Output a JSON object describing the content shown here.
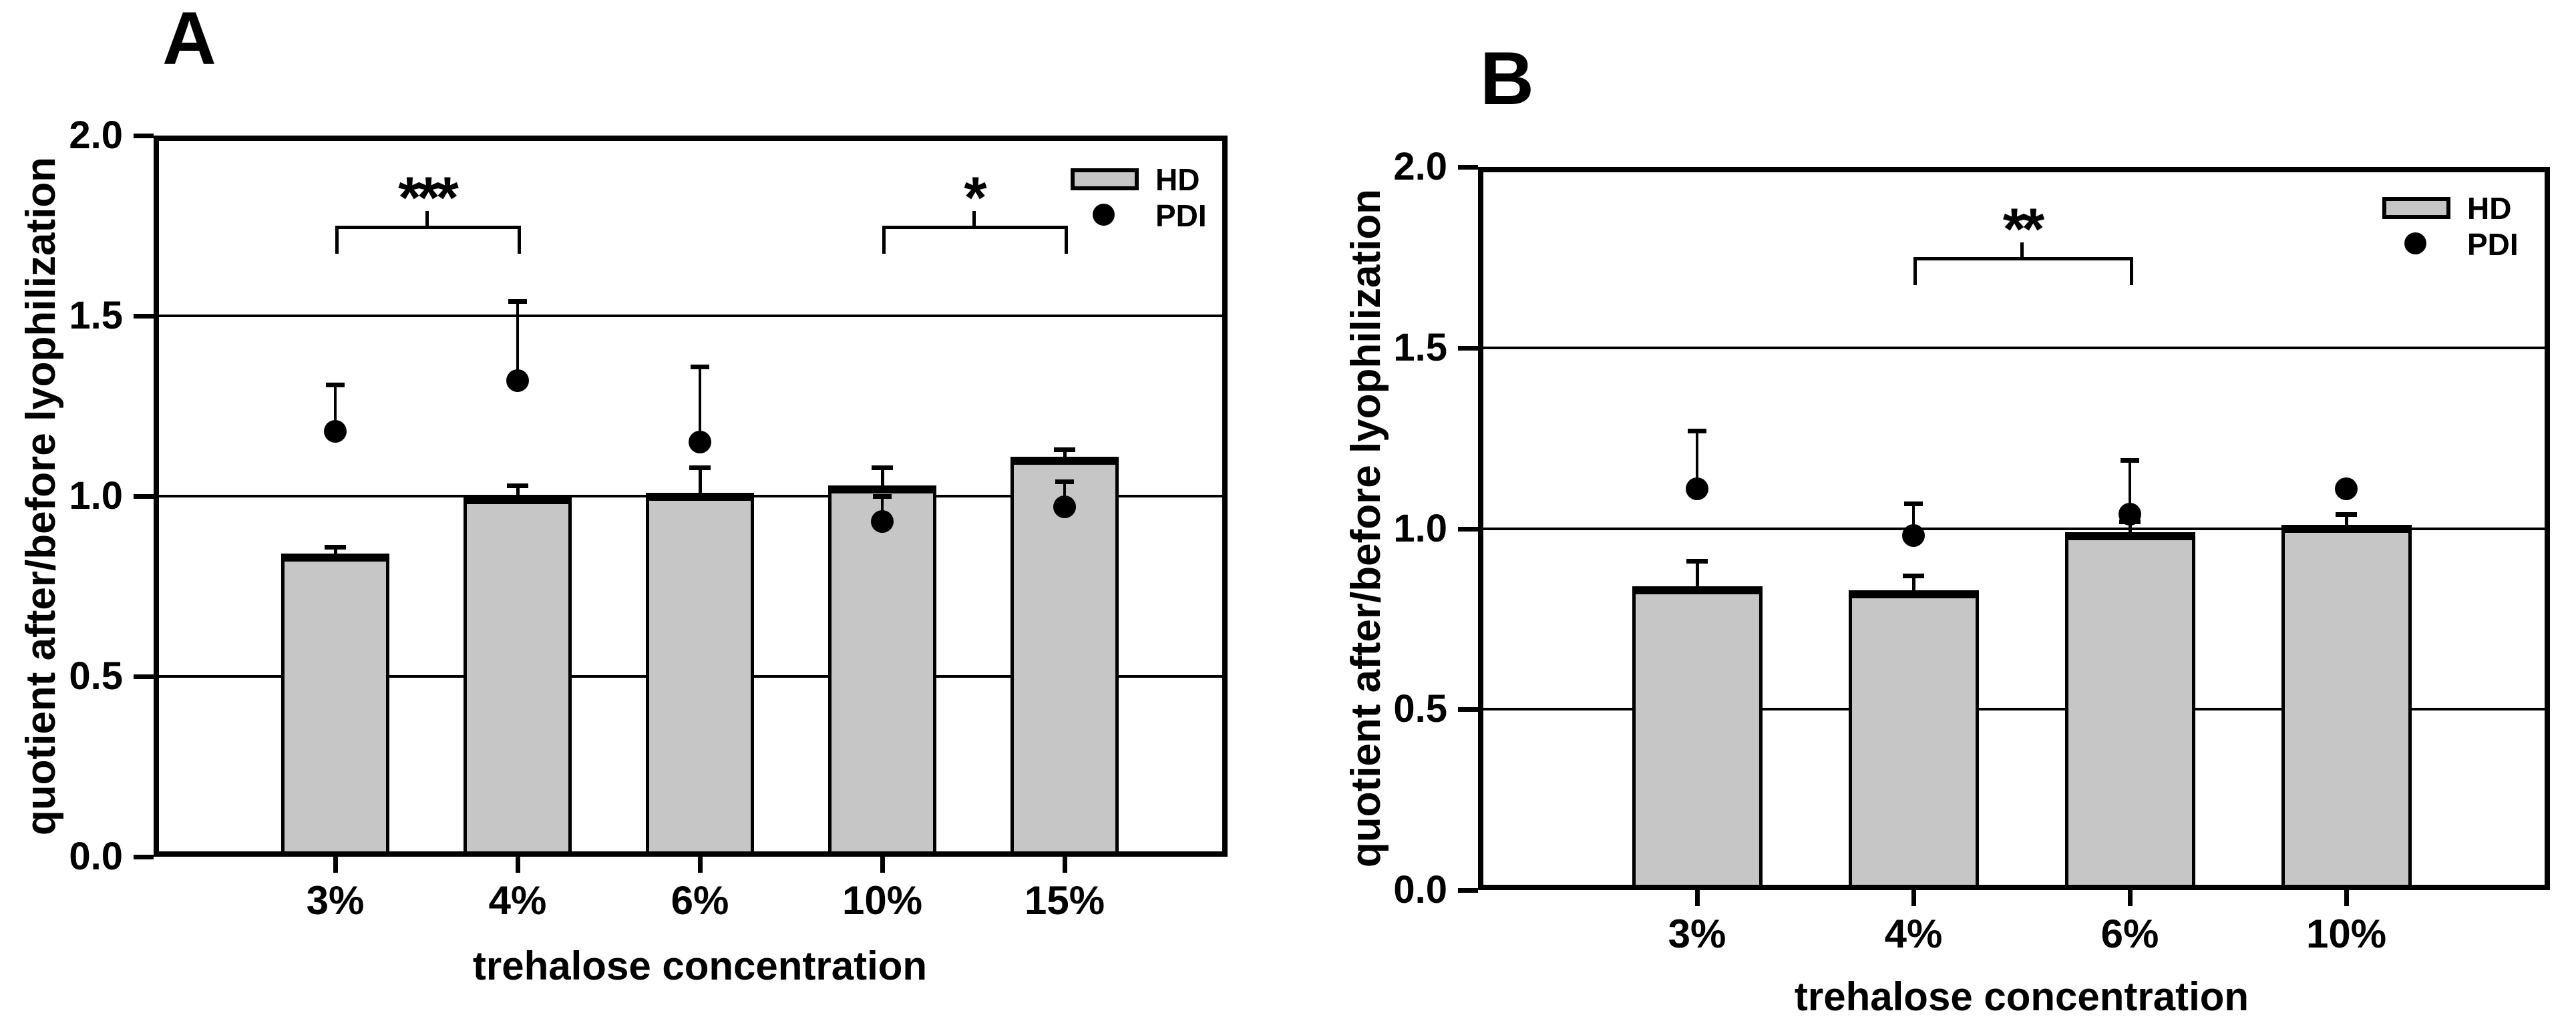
{
  "figure": {
    "background_color": "#ffffff",
    "foreground_color": "#000000",
    "bar_fill_color": "#c6c6c6"
  },
  "chart_data": [
    {
      "type": "bar",
      "panel_label": "A",
      "xlabel": "trehalose concentration",
      "ylabel": "quotient after/before lyophilization",
      "ylim": [
        0.0,
        2.0
      ],
      "ytick_labels": [
        "0.0",
        "0.5",
        "1.0",
        "1.5",
        "2.0"
      ],
      "ytick_values": [
        0.0,
        0.5,
        1.0,
        1.5,
        2.0
      ],
      "grid": true,
      "legend_position": "top-right",
      "categories": [
        "3%",
        "4%",
        "6%",
        "10%",
        "15%"
      ],
      "series": [
        {
          "name": "HD",
          "marker": "bar",
          "values": [
            0.84,
            1.0,
            1.01,
            1.03,
            1.11
          ],
          "errors_plus": [
            0.02,
            0.03,
            0.07,
            0.05,
            0.02
          ]
        },
        {
          "name": "PDI",
          "marker": "dot",
          "values": [
            1.18,
            1.32,
            1.15,
            0.93,
            0.97
          ],
          "errors_plus": [
            0.13,
            0.22,
            0.21,
            0.07,
            0.07
          ]
        }
      ],
      "annotations": [
        {
          "label": "***",
          "from": "3%",
          "to": "4%",
          "bracket_y": 1.75
        },
        {
          "label": "*",
          "from": "10%",
          "to": "15%",
          "bracket_y": 1.75
        }
      ],
      "legend": [
        {
          "label": "HD",
          "marker": "bar"
        },
        {
          "label": "PDI",
          "marker": "dot"
        }
      ]
    },
    {
      "type": "bar",
      "panel_label": "B",
      "xlabel": "trehalose concentration",
      "ylabel": "quotient after/before lyophilization",
      "ylim": [
        0.0,
        2.0
      ],
      "ytick_labels": [
        "0.0",
        "0.5",
        "1.0",
        "1.5",
        "2.0"
      ],
      "ytick_values": [
        0.0,
        0.5,
        1.0,
        1.5,
        2.0
      ],
      "grid": true,
      "legend_position": "top-right",
      "categories": [
        "3%",
        "4%",
        "6%",
        "10%"
      ],
      "series": [
        {
          "name": "HD",
          "marker": "bar",
          "values": [
            0.84,
            0.83,
            0.99,
            1.01
          ],
          "errors_plus": [
            0.07,
            0.04,
            0.03,
            0.03
          ]
        },
        {
          "name": "PDI",
          "marker": "dot",
          "values": [
            1.11,
            0.98,
            1.04,
            1.11
          ],
          "errors_plus": [
            0.16,
            0.09,
            0.15,
            0
          ]
        }
      ],
      "annotations": [
        {
          "label": "**",
          "from": "4%",
          "to": "6%",
          "bracket_y": 1.75
        }
      ],
      "legend": [
        {
          "label": "HD",
          "marker": "bar"
        },
        {
          "label": "PDI",
          "marker": "dot"
        }
      ]
    }
  ]
}
